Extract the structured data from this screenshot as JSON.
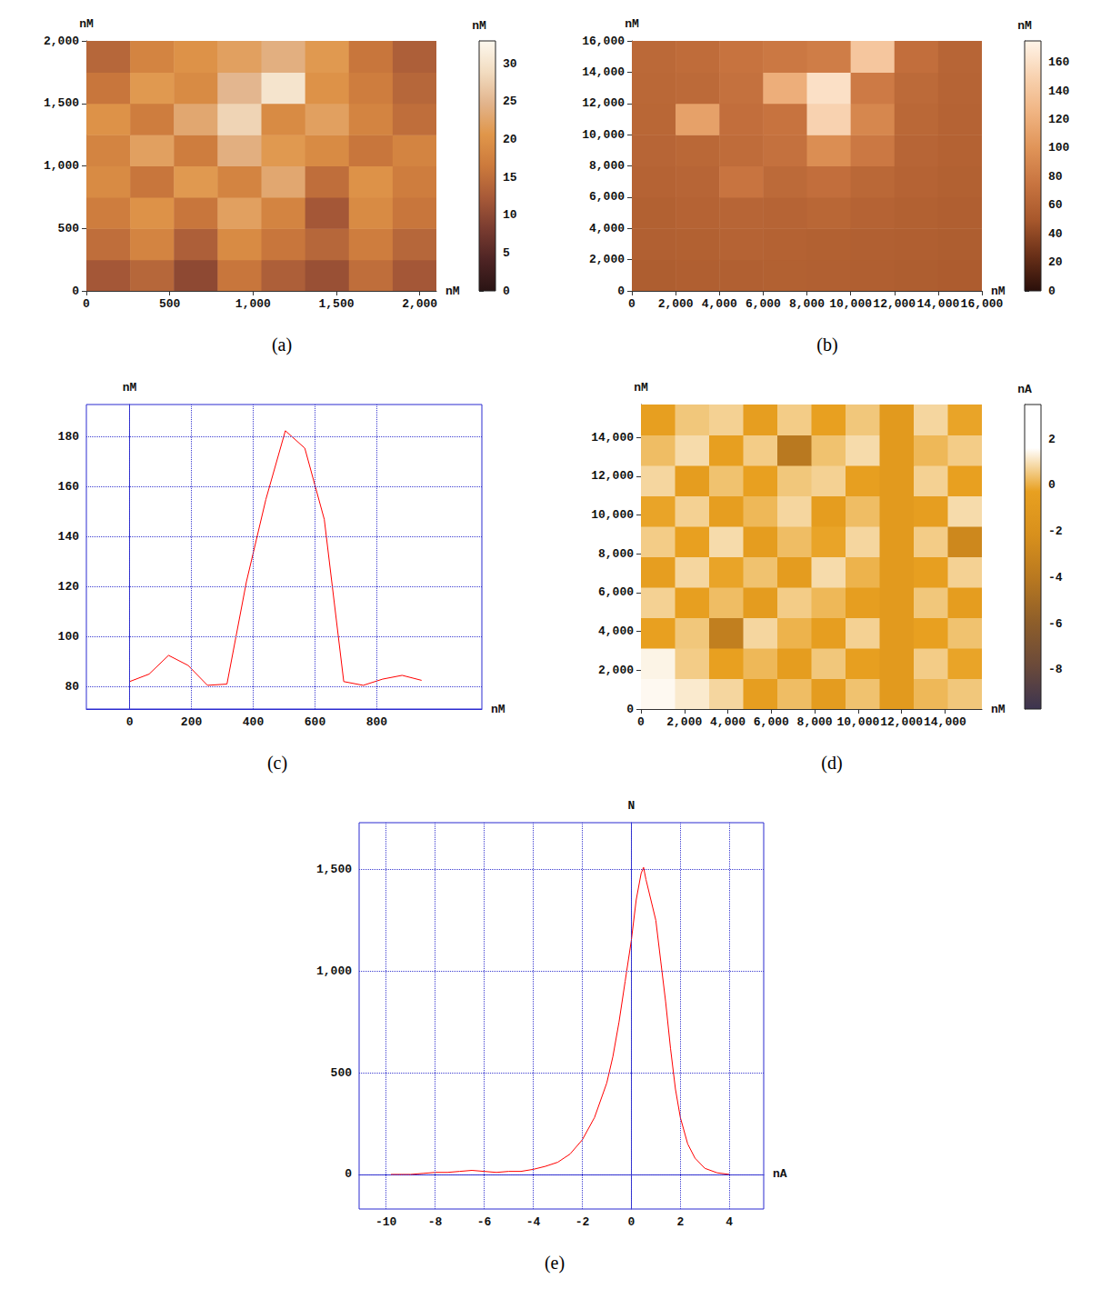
{
  "chart_data": [
    {
      "type": "heatmap",
      "title": "(a)",
      "xlabel": "nM",
      "ylabel": "nM",
      "xlim": [
        0,
        2100
      ],
      "xticks": [
        0,
        500,
        1000,
        1500,
        2000
      ],
      "ylim": [
        0,
        2000
      ],
      "yticks": [
        0,
        500,
        1000,
        1500,
        2000
      ],
      "xbins": [
        0,
        262.5,
        525,
        787.5,
        1050,
        1312.5,
        1575,
        1837.5,
        2100
      ],
      "ybins": [
        0,
        250,
        500,
        750,
        1000,
        1250,
        1500,
        1750,
        2000
      ],
      "z": [
        [
          12,
          14,
          10,
          16,
          13,
          11,
          15,
          12
        ],
        [
          15,
          18,
          13,
          19,
          16,
          14,
          17,
          14
        ],
        [
          17,
          20,
          16,
          22,
          18,
          12,
          19,
          16
        ],
        [
          19,
          16,
          21,
          18,
          23,
          15,
          20,
          17
        ],
        [
          18,
          22,
          17,
          24,
          21,
          19,
          16,
          18
        ],
        [
          20,
          17,
          23,
          28,
          19,
          22,
          18,
          15
        ],
        [
          16,
          21,
          19,
          25,
          30,
          20,
          17,
          14
        ],
        [
          14,
          18,
          20,
          22,
          24,
          21,
          16,
          13
        ]
      ],
      "colorbar": {
        "label": "nM",
        "range": [
          0,
          33
        ],
        "ticks": [
          0,
          5,
          10,
          15,
          20,
          25,
          30
        ]
      }
    },
    {
      "type": "heatmap",
      "title": "(b)",
      "xlabel": "nM",
      "ylabel": "nM",
      "xlim": [
        0,
        16000
      ],
      "xticks": [
        0,
        2000,
        4000,
        6000,
        8000,
        10000,
        12000,
        14000,
        16000
      ],
      "ylim": [
        0,
        16000
      ],
      "yticks": [
        0,
        2000,
        4000,
        6000,
        8000,
        10000,
        12000,
        14000,
        16000
      ],
      "xbins": [
        0,
        2000,
        4000,
        6000,
        8000,
        10000,
        12000,
        14000,
        16000
      ],
      "ybins": [
        0,
        2000,
        4000,
        6000,
        8000,
        10000,
        12000,
        14000,
        16000
      ],
      "z": [
        [
          55,
          56,
          57,
          58,
          57,
          56,
          55,
          54
        ],
        [
          57,
          58,
          60,
          59,
          58,
          57,
          56,
          55
        ],
        [
          58,
          60,
          62,
          61,
          63,
          60,
          58,
          56
        ],
        [
          60,
          62,
          75,
          66,
          70,
          64,
          60,
          58
        ],
        [
          62,
          64,
          68,
          72,
          95,
          78,
          62,
          59
        ],
        [
          63,
          110,
          70,
          74,
          150,
          90,
          64,
          60
        ],
        [
          64,
          66,
          72,
          120,
          160,
          80,
          66,
          61
        ],
        [
          65,
          68,
          74,
          78,
          82,
          140,
          70,
          62
        ]
      ],
      "colorbar": {
        "label": "nM",
        "range": [
          0,
          175
        ],
        "ticks": [
          0,
          20,
          40,
          60,
          80,
          100,
          120,
          140,
          160
        ]
      }
    },
    {
      "type": "line",
      "title": "(c)",
      "xlabel": "nM",
      "ylabel": "nM",
      "color": "#ff0000",
      "grid": true,
      "x": [
        0,
        63,
        126,
        189,
        252,
        315,
        378,
        441,
        504,
        567,
        630,
        693,
        756,
        819,
        882,
        945
      ],
      "values": [
        82,
        85,
        92.5,
        88.5,
        80.5,
        81,
        122,
        155,
        182.5,
        175.5,
        147,
        82,
        80.5,
        83,
        84.5,
        82.5
      ],
      "xlim": [
        -140,
        1140
      ],
      "xticks": [
        0,
        200,
        400,
        600,
        800
      ],
      "ylim": [
        71,
        193
      ],
      "yticks": [
        80,
        100,
        120,
        140,
        160,
        180
      ]
    },
    {
      "type": "heatmap",
      "title": "(d)",
      "xlabel": "nM",
      "ylabel": "nM",
      "xlim": [
        0,
        15700
      ],
      "xticks": [
        0,
        2000,
        4000,
        6000,
        8000,
        10000,
        12000,
        14000
      ],
      "ylim": [
        0,
        15700
      ],
      "yticks": [
        0,
        2000,
        4000,
        6000,
        8000,
        10000,
        12000,
        14000
      ],
      "xbins": [
        0,
        1570,
        3140,
        4710,
        6280,
        7850,
        9420,
        10990,
        12560,
        14130,
        15700
      ],
      "ybins": [
        0,
        1570,
        3140,
        4710,
        6280,
        7850,
        9420,
        10990,
        12560,
        14130,
        15700
      ],
      "z": [
        [
          1.5,
          1.2,
          0.8,
          -0.5,
          0.3,
          -0.8,
          0.4,
          -1,
          0.2,
          0.5
        ],
        [
          1.4,
          0.6,
          -0.3,
          0.2,
          -0.6,
          0.5,
          -0.4,
          -1,
          0.6,
          -0.2
        ],
        [
          -0.3,
          0.5,
          -3.5,
          0.8,
          0.1,
          -0.5,
          0.7,
          -1,
          -0.3,
          0.4
        ],
        [
          0.7,
          -0.4,
          0.3,
          -0.8,
          0.6,
          0.2,
          -0.5,
          -1,
          0.5,
          -0.6
        ],
        [
          -0.5,
          0.8,
          -0.2,
          0.4,
          -0.7,
          0.9,
          0.1,
          -1,
          -0.4,
          0.7
        ],
        [
          0.6,
          -0.3,
          0.9,
          -0.6,
          0.3,
          -0.2,
          0.8,
          -1,
          0.6,
          -2.8
        ],
        [
          -0.2,
          0.7,
          -0.5,
          0.2,
          0.8,
          -0.6,
          0.3,
          -1,
          -0.5,
          0.9
        ],
        [
          0.8,
          -0.6,
          0.4,
          -0.3,
          0.5,
          0.7,
          -0.4,
          -1,
          0.7,
          -0.3
        ],
        [
          0.3,
          0.9,
          -0.4,
          0.6,
          -4,
          0.4,
          0.9,
          -1,
          0.2,
          0.6
        ],
        [
          -0.4,
          0.5,
          0.7,
          -0.5,
          0.6,
          -0.3,
          0.5,
          -1,
          0.8,
          -0.2
        ]
      ],
      "colorbar": {
        "label": "nA",
        "range": [
          -9.7,
          3.5
        ],
        "ticks": [
          -8,
          -6,
          -4,
          -2,
          0,
          2
        ]
      }
    },
    {
      "type": "line",
      "title": "(e)",
      "xlabel": "nA",
      "ylabel": "N",
      "color": "#ff0000",
      "grid": true,
      "x": [
        -9.8,
        -9,
        -8.5,
        -8,
        -7.5,
        -7,
        -6.5,
        -6,
        -5.5,
        -5,
        -4.5,
        -4,
        -3.5,
        -3,
        -2.5,
        -2,
        -1.5,
        -1,
        -0.75,
        -0.5,
        -0.25,
        0,
        0.2,
        0.4,
        0.5,
        0.6,
        0.8,
        1,
        1.2,
        1.4,
        1.6,
        1.8,
        2,
        2.3,
        2.6,
        3,
        3.5,
        4
      ],
      "values": [
        0,
        0,
        5,
        10,
        10,
        15,
        20,
        15,
        10,
        15,
        15,
        25,
        40,
        60,
        100,
        170,
        280,
        450,
        580,
        750,
        950,
        1150,
        1350,
        1480,
        1510,
        1450,
        1350,
        1250,
        1050,
        850,
        620,
        420,
        280,
        150,
        80,
        30,
        8,
        0
      ],
      "xlim": [
        -11.1,
        5.4
      ],
      "xticks": [
        -10,
        -8,
        -6,
        -4,
        -2,
        0,
        2,
        4
      ],
      "ylim": [
        -170,
        1730
      ],
      "yticks": [
        0,
        500,
        1000,
        1500
      ]
    }
  ]
}
